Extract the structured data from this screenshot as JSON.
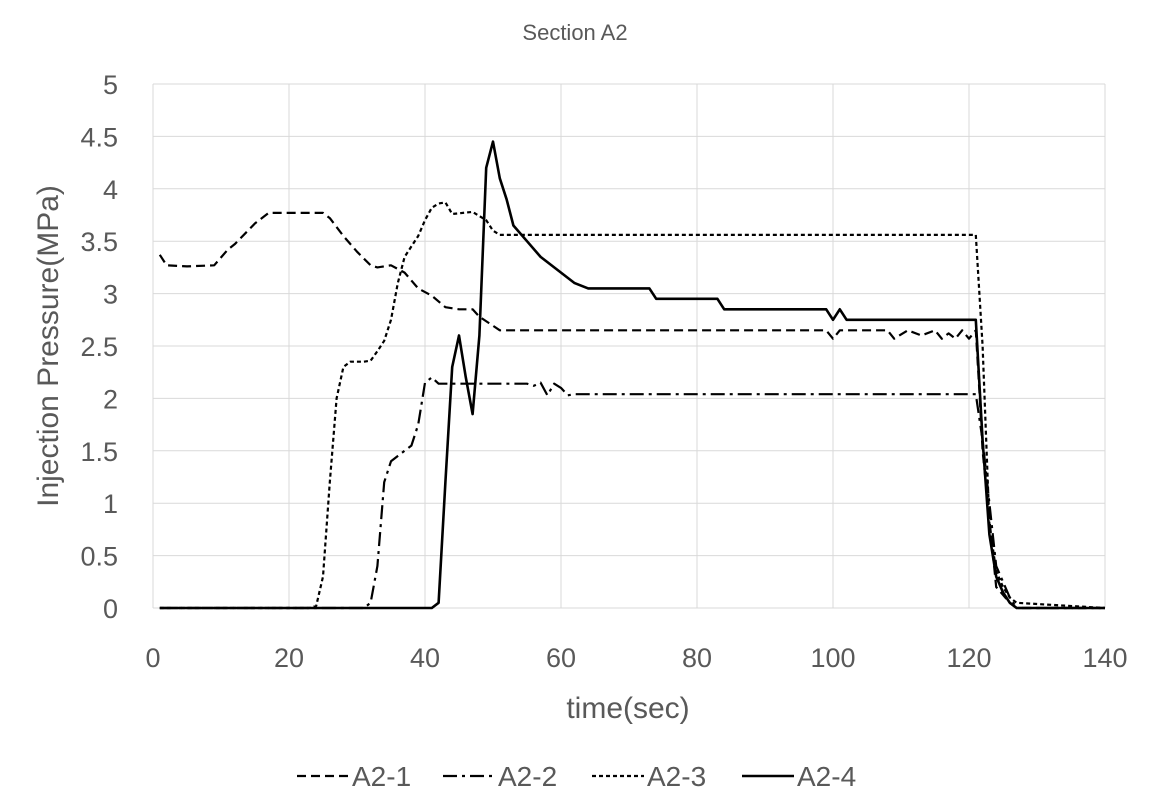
{
  "chart_data": {
    "type": "line",
    "title": "Section A2",
    "xlabel": "time(sec)",
    "ylabel": "Injection Pressure(MPa)",
    "xlim": [
      0,
      140
    ],
    "ylim": [
      0,
      5
    ],
    "xticks": [
      "0",
      "20",
      "40",
      "60",
      "80",
      "100",
      "120",
      "140"
    ],
    "yticks": [
      "0",
      "0.5",
      "1",
      "1.5",
      "2",
      "2.5",
      "3",
      "3.5",
      "4",
      "4.5",
      "5"
    ],
    "grid": true,
    "legend_position": "bottom",
    "series": [
      {
        "name": "A2-1",
        "line_style": "dashed",
        "x": [
          1,
          2,
          5,
          9,
          11,
          12,
          15,
          17,
          19,
          25,
          26,
          28,
          30,
          32,
          33,
          35,
          37,
          39,
          41,
          43,
          45,
          47,
          48,
          51,
          80,
          99,
          100,
          101,
          102,
          108,
          109,
          111,
          113,
          115,
          116,
          117,
          118,
          119,
          120,
          121,
          121.5,
          122,
          124,
          126,
          127,
          140
        ],
        "y": [
          3.37,
          3.27,
          3.26,
          3.27,
          3.42,
          3.47,
          3.67,
          3.77,
          3.77,
          3.77,
          3.72,
          3.55,
          3.4,
          3.27,
          3.25,
          3.27,
          3.2,
          3.05,
          2.98,
          2.87,
          2.85,
          2.85,
          2.78,
          2.65,
          2.65,
          2.65,
          2.57,
          2.65,
          2.65,
          2.65,
          2.57,
          2.65,
          2.6,
          2.65,
          2.57,
          2.62,
          2.57,
          2.65,
          2.57,
          2.65,
          2.1,
          1.5,
          0.2,
          0.05,
          0,
          0
        ]
      },
      {
        "name": "A2-2",
        "line_style": "dash-dot",
        "x": [
          1,
          31,
          32,
          33,
          34,
          35,
          36,
          37,
          38,
          39,
          40,
          41,
          42,
          44,
          50,
          55,
          56,
          57,
          58,
          59,
          60,
          61,
          62,
          120,
          121,
          122,
          124,
          126,
          127,
          140
        ],
        "y": [
          0,
          0,
          0.05,
          0.4,
          1.2,
          1.4,
          1.45,
          1.5,
          1.55,
          1.75,
          2.15,
          2.2,
          2.14,
          2.14,
          2.14,
          2.14,
          2.12,
          2.15,
          2.03,
          2.14,
          2.1,
          2.03,
          2.04,
          2.04,
          2.04,
          1.6,
          0.4,
          0.1,
          0,
          0
        ]
      },
      {
        "name": "A2-3",
        "line_style": "short-dash",
        "x": [
          1,
          23,
          24,
          25,
          26,
          27,
          28,
          29,
          30,
          31,
          32,
          33,
          34,
          35,
          36,
          37,
          38,
          39,
          40,
          41,
          42,
          43,
          44,
          47,
          49,
          50,
          51,
          120,
          121,
          122,
          123,
          124,
          125,
          126,
          127,
          140
        ],
        "y": [
          0,
          0,
          0.02,
          0.3,
          1.2,
          2.0,
          2.3,
          2.35,
          2.35,
          2.35,
          2.36,
          2.45,
          2.55,
          2.75,
          3.1,
          3.35,
          3.45,
          3.55,
          3.7,
          3.82,
          3.86,
          3.87,
          3.76,
          3.78,
          3.7,
          3.6,
          3.56,
          3.56,
          3.56,
          2.5,
          0.8,
          0.35,
          0.2,
          0.1,
          0.05,
          0
        ]
      },
      {
        "name": "A2-4",
        "line_style": "solid",
        "x": [
          1,
          41,
          42,
          43,
          44,
          45,
          46,
          47,
          48,
          49,
          50,
          51,
          52,
          53,
          55,
          57,
          59,
          61,
          62,
          64,
          66,
          70,
          73,
          74,
          76,
          80,
          83,
          84,
          86,
          90,
          95,
          99,
          100,
          101,
          102,
          110,
          115,
          120,
          121,
          122,
          123,
          124,
          125,
          126,
          127,
          140
        ],
        "y": [
          0,
          0,
          0.05,
          1.2,
          2.3,
          2.6,
          2.2,
          1.85,
          2.6,
          4.2,
          4.45,
          4.1,
          3.9,
          3.65,
          3.5,
          3.35,
          3.25,
          3.15,
          3.1,
          3.05,
          3.05,
          3.05,
          3.05,
          2.95,
          2.95,
          2.95,
          2.95,
          2.85,
          2.85,
          2.85,
          2.85,
          2.85,
          2.75,
          2.85,
          2.75,
          2.75,
          2.75,
          2.75,
          2.75,
          1.6,
          0.7,
          0.3,
          0.15,
          0.05,
          0,
          0
        ]
      }
    ]
  }
}
